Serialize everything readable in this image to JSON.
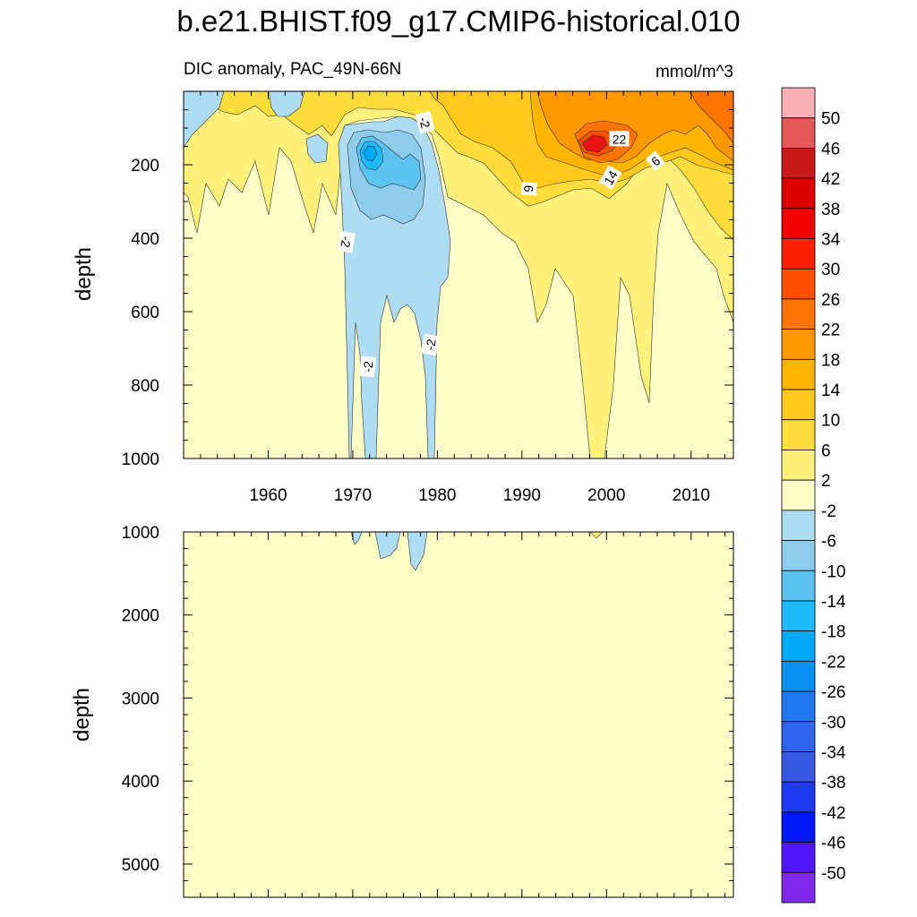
{
  "chart_data": [
    {
      "type": "heatmap",
      "panel": "upper",
      "title": "b.e21.BHIST.f09_g17.CMIP6-historical.010",
      "left_subtitle": "DIC anomaly, PAC_49N-66N",
      "right_subtitle": "mmol/m^3",
      "xlabel": "",
      "ylabel": "depth",
      "xlim": [
        1950,
        2015
      ],
      "ylim": [
        1000,
        0
      ],
      "x_ticks": [
        1960,
        1970,
        1980,
        1990,
        2000,
        2010
      ],
      "x_tick_labels": [
        "1960",
        "1970",
        "1980",
        "1990",
        "2000",
        "2010"
      ],
      "y_ticks": [
        200,
        400,
        600,
        800,
        1000
      ],
      "y_tick_labels": [
        "200",
        "400",
        "600",
        "800",
        "1000"
      ],
      "contour_labels": [
        {
          "text": "-2",
          "year": 1978.5,
          "depth": 85,
          "rotation": 75
        },
        {
          "text": "-2",
          "year": 1969.2,
          "depth": 410,
          "rotation": 100
        },
        {
          "text": "-2",
          "year": 1971.8,
          "depth": 750,
          "rotation": -85
        },
        {
          "text": "-2",
          "year": 1979.2,
          "depth": 690,
          "rotation": -80
        },
        {
          "text": "22",
          "year": 2001.5,
          "depth": 130,
          "rotation": 0
        },
        {
          "text": "14",
          "year": 2000.5,
          "depth": 235,
          "rotation": -60
        },
        {
          "text": "6",
          "year": 2005.8,
          "depth": 190,
          "rotation": -40
        },
        {
          "text": "6",
          "year": 1990.8,
          "depth": 265,
          "rotation": 95
        }
      ],
      "regions": [
        {
          "name": "background",
          "level": "-2 to 2",
          "years": [
            1950,
            2015
          ],
          "depths": [
            0,
            1000
          ]
        },
        {
          "name": "positive-surface-1950s-1990s",
          "level": "2 to 10",
          "years": [
            1950,
            1995
          ],
          "depths": [
            0,
            300
          ]
        },
        {
          "name": "negative-plume-1970s",
          "level": "-6 to -2",
          "years": [
            1969,
            1981
          ],
          "depths": [
            0,
            1000
          ]
        },
        {
          "name": "negative-core-1970s",
          "level": "-22 to -10",
          "years": [
            1970.5,
            1977
          ],
          "depths": [
            120,
            260
          ]
        },
        {
          "name": "positive-plume-1990s-2010s",
          "level": "2 to 6",
          "years": [
            1988,
            2015
          ],
          "depths": [
            0,
            1000
          ]
        },
        {
          "name": "positive-core-2000",
          "level": "14 to 34",
          "years": [
            1996,
            2006
          ],
          "depths": [
            0,
            280
          ]
        }
      ]
    },
    {
      "type": "heatmap",
      "panel": "lower",
      "xlabel": "",
      "ylabel": "depth",
      "xlim": [
        1950,
        2015
      ],
      "ylim": [
        5400,
        1000
      ],
      "y_ticks": [
        1000,
        2000,
        3000,
        4000,
        5000
      ],
      "y_tick_labels": [
        "1000",
        "2000",
        "3000",
        "4000",
        "5000"
      ],
      "regions": [
        {
          "name": "background",
          "level": "-2 to 2",
          "years": [
            1950,
            2015
          ],
          "depths": [
            1000,
            5400
          ]
        },
        {
          "name": "negative-tongues",
          "level": "-6 to -2",
          "years": [
            1970,
            1979
          ],
          "depths": [
            1000,
            1450
          ]
        },
        {
          "name": "positive-tip",
          "level": "2 to 6",
          "years": [
            1997.5,
            1999
          ],
          "depths": [
            1000,
            1060
          ]
        }
      ]
    }
  ],
  "colorbar": {
    "labels": [
      "50",
      "46",
      "42",
      "38",
      "34",
      "30",
      "26",
      "22",
      "18",
      "14",
      "10",
      "6",
      "2",
      "-2",
      "-6",
      "-10",
      "-14",
      "-18",
      "-22",
      "-26",
      "-30",
      "-34",
      "-38",
      "-42",
      "-46",
      "-50"
    ],
    "colors": [
      "#f8b0b4",
      "#e45858",
      "#c81818",
      "#dc0000",
      "#f00000",
      "#ff2000",
      "#ff5000",
      "#ff7400",
      "#ff9800",
      "#ffb400",
      "#ffc81c",
      "#ffdd3c",
      "#fff17c",
      "#ffffc8",
      "#aedcf2",
      "#8ecceb",
      "#5cc2ef",
      "#20baf8",
      "#00a8f8",
      "#0890f0",
      "#2078f0",
      "#3064ec",
      "#3858e0",
      "#2038f0",
      "#0018f8",
      "#5018f8",
      "#8028e8"
    ]
  }
}
